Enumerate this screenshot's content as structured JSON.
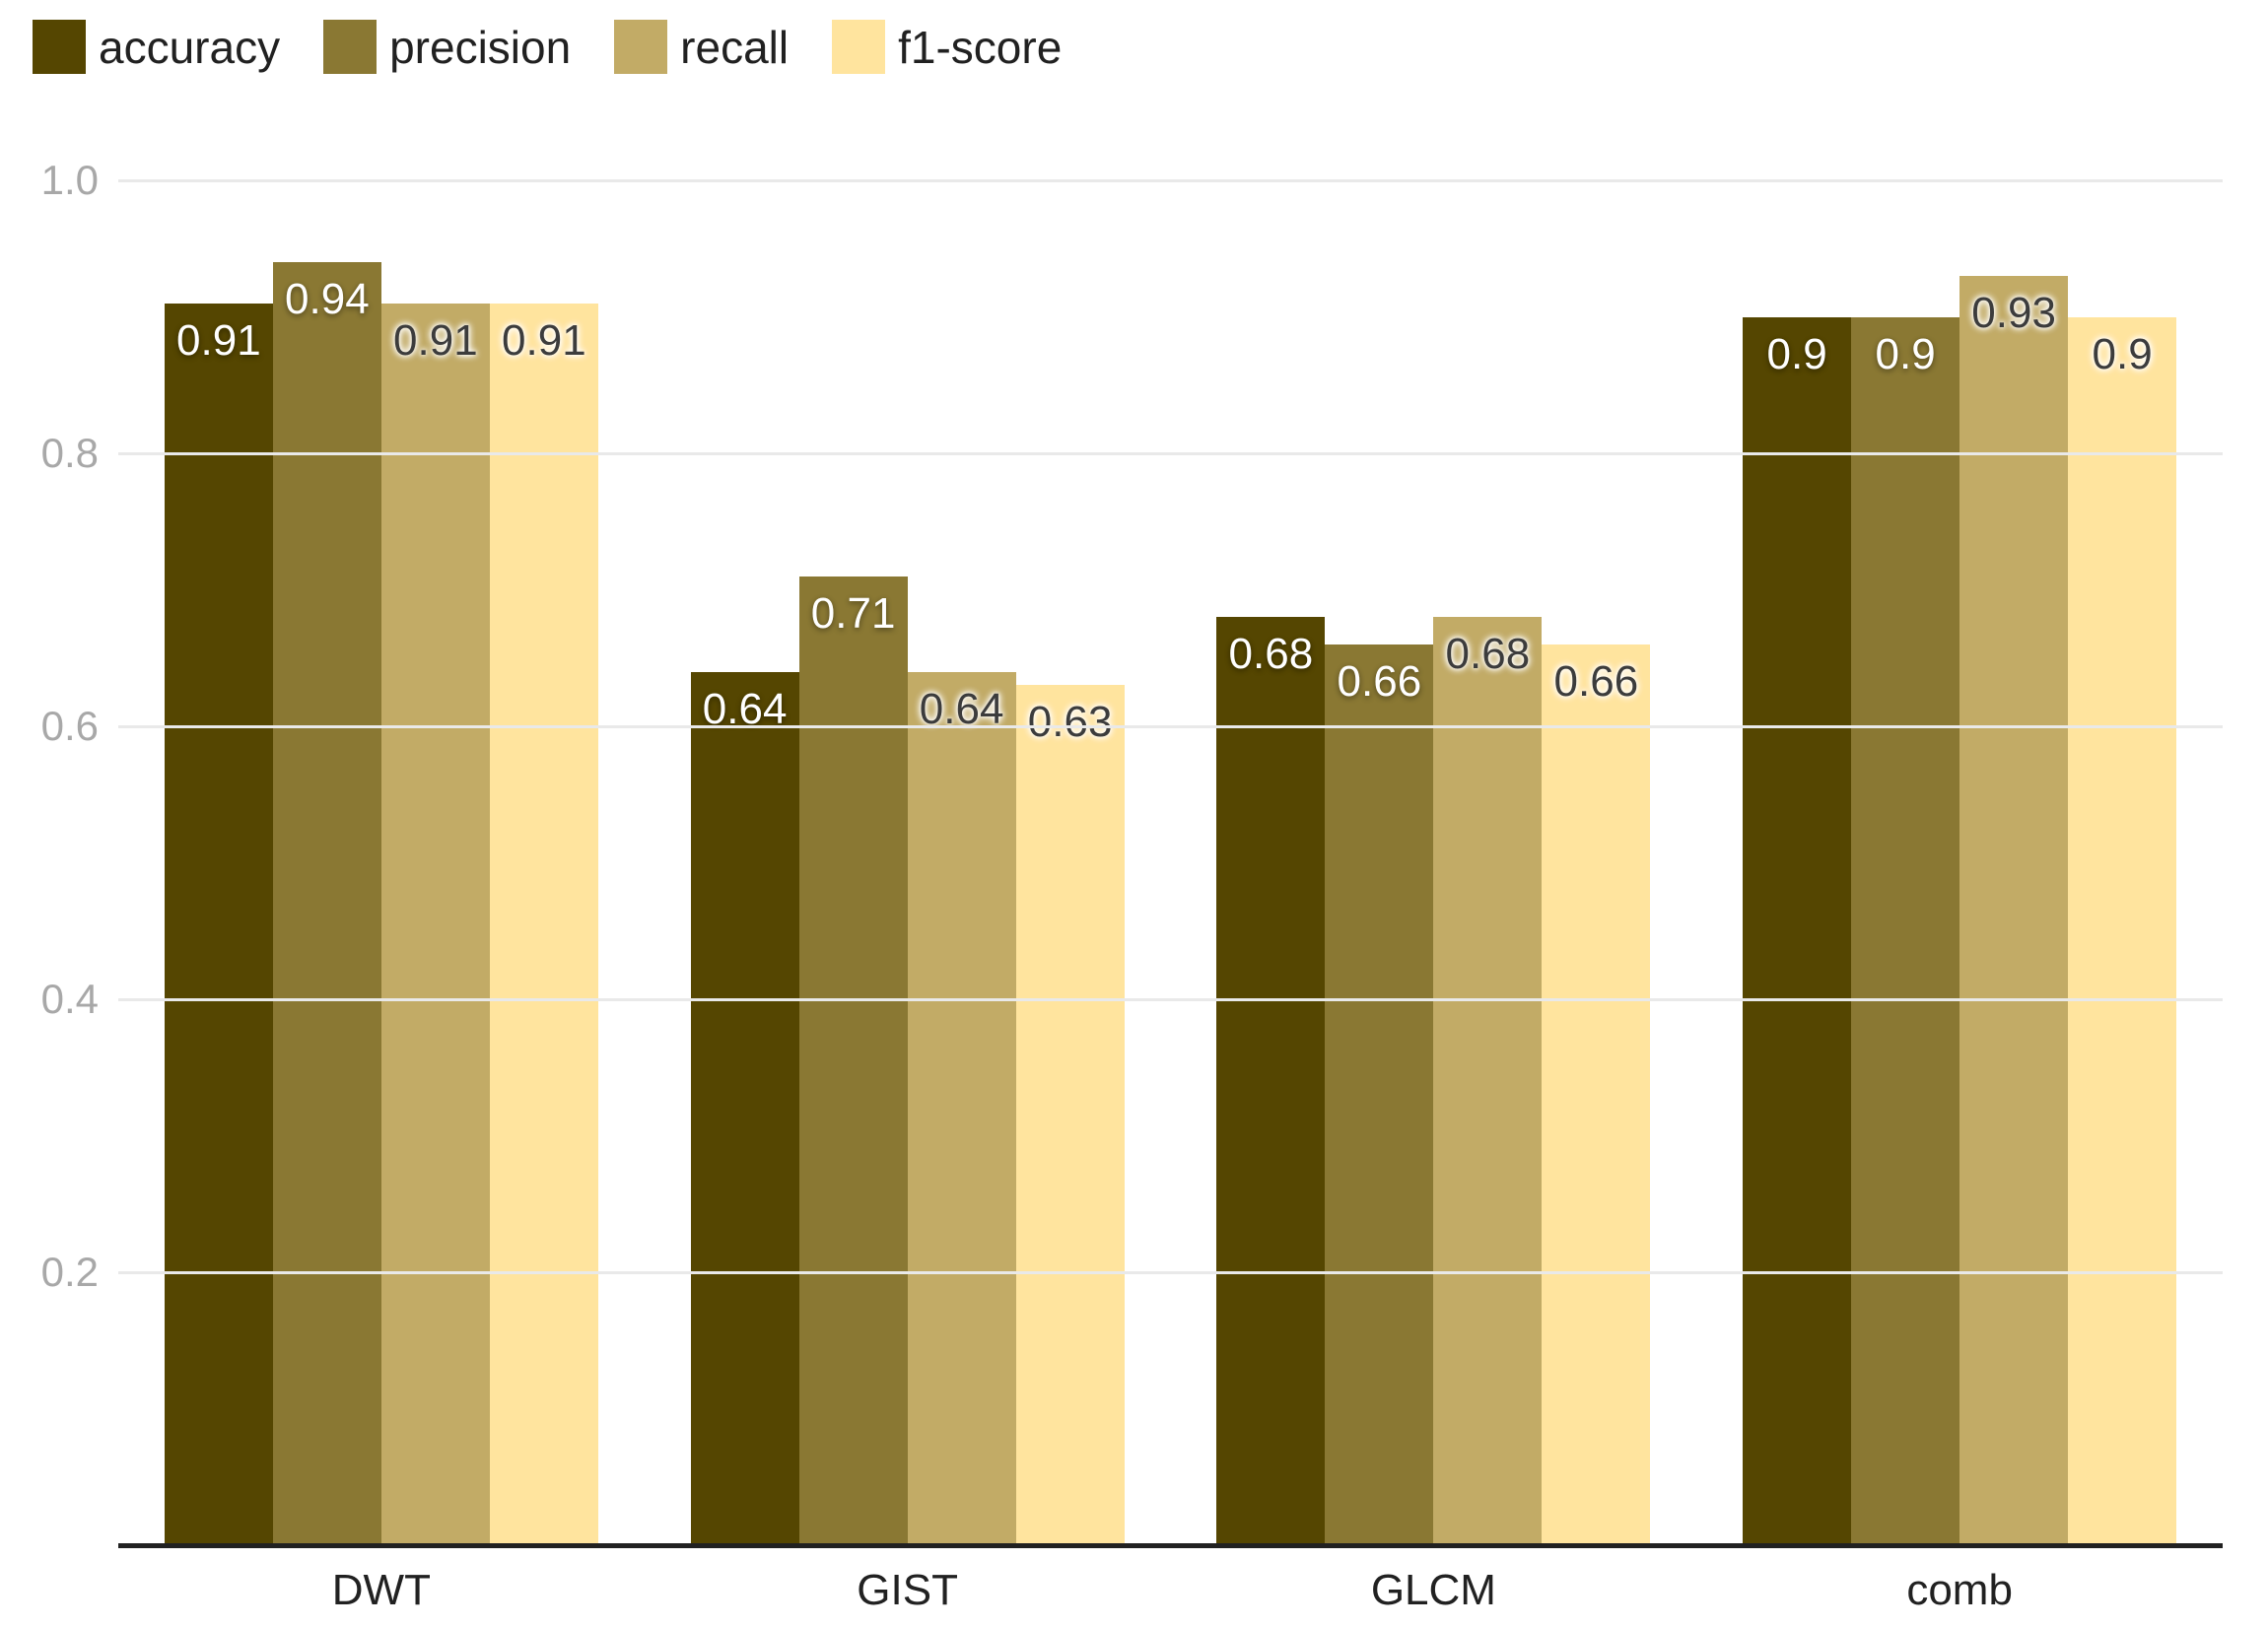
{
  "chart_data": {
    "type": "bar",
    "title": "",
    "xlabel": "",
    "ylabel": "",
    "categories": [
      "DWT",
      "GIST",
      "GLCM",
      "comb"
    ],
    "series": [
      {
        "name": "accuracy",
        "color": "#554601",
        "label_style": "light",
        "values": [
          0.91,
          0.64,
          0.68,
          0.9
        ]
      },
      {
        "name": "precision",
        "color": "#8a7833",
        "label_style": "light",
        "values": [
          0.94,
          0.71,
          0.66,
          0.9
        ]
      },
      {
        "name": "recall",
        "color": "#c2ab66",
        "label_style": "dark",
        "values": [
          0.91,
          0.64,
          0.68,
          0.93
        ]
      },
      {
        "name": "f1-score",
        "color": "#ffe49e",
        "label_style": "dark",
        "values": [
          0.91,
          0.63,
          0.66,
          0.9
        ]
      }
    ],
    "value_labels": [
      [
        "0.91",
        "0.64",
        "0.68",
        "0.9"
      ],
      [
        "0.94",
        "0.71",
        "0.66",
        "0.9"
      ],
      [
        "0.91",
        "0.64",
        "0.68",
        "0.93"
      ],
      [
        "0.91",
        "0.63",
        "0.66",
        "0.9"
      ]
    ],
    "yticks": [
      {
        "label": "1.0",
        "value": 1.0
      },
      {
        "label": "0.8",
        "value": 0.8
      },
      {
        "label": "0.6",
        "value": 0.6
      },
      {
        "label": "0.4",
        "value": 0.4
      },
      {
        "label": "0.2",
        "value": 0.2
      }
    ],
    "ylim": [
      0,
      1.0
    ],
    "grid": true,
    "legend_position": "top-left",
    "colors": {
      "grid_line": "#e9e9e9",
      "axis_line": "#212121",
      "tick_text": "#a8a8a8",
      "category_text": "#212121",
      "legend_text": "#212121",
      "label_light": "#ffffff",
      "label_dark": "#3c3c3c"
    }
  }
}
